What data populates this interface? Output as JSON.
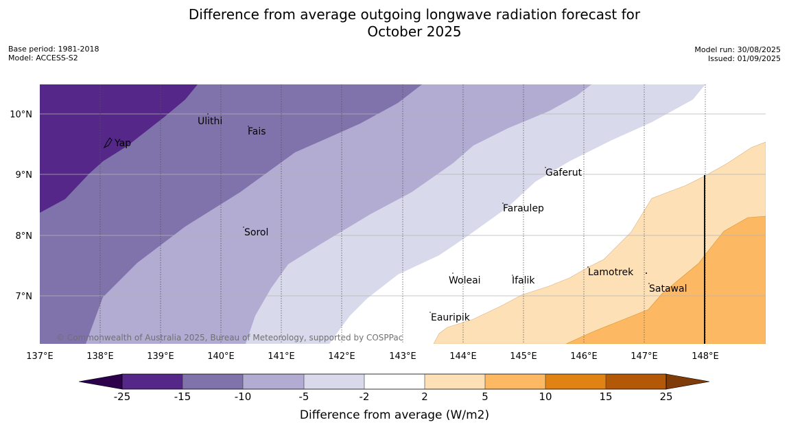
{
  "title_line1": "Difference from average outgoing longwave radiation forecast for",
  "title_line2": "October 2025",
  "base_period": "Base period: 1981-2018",
  "model": "Model: ACCESS-S2",
  "model_run": "Model run: 30/08/2025",
  "issued": "Issued: 01/09/2025",
  "credit": "© Commonwealth of Australia 2025, Bureau of Meteorology, supported by COSPPac",
  "colorbar_label": "Difference from average (W/m2)",
  "lon_ticks": [
    "137°E",
    "138°E",
    "139°E",
    "140°E",
    "141°E",
    "142°E",
    "143°E",
    "144°E",
    "145°E",
    "146°E",
    "147°E",
    "148°E"
  ],
  "lat_ticks": [
    "10°N",
    "9°N",
    "8°N",
    "7°N"
  ],
  "places": [
    {
      "name": "Yap"
    },
    {
      "name": "Ulithi"
    },
    {
      "name": "Fais"
    },
    {
      "name": "Gaferut"
    },
    {
      "name": "Faraulep"
    },
    {
      "name": "Sorol"
    },
    {
      "name": "Lamotrek"
    },
    {
      "name": "Woleai"
    },
    {
      "name": "Ifalik"
    },
    {
      "name": "Satawal"
    },
    {
      "name": "Eauripik"
    }
  ],
  "colorbar_ticks": [
    "-25",
    "-15",
    "-10",
    "-5",
    "-2",
    "2",
    "5",
    "10",
    "15",
    "25"
  ],
  "colors": {
    "below_-25": "#2d004b",
    "-25_-15": "#542788",
    "-15_-10": "#8073ac",
    "-10_-5": "#b2abd2",
    "-5_-2": "#d8daeb",
    "-2_2": "#ffffff",
    "2_5": "#fee0b6",
    "5_10": "#fdb863",
    "10_15": "#e08214",
    "15_25": "#b35806",
    "above_25": "#7f3b08"
  }
}
